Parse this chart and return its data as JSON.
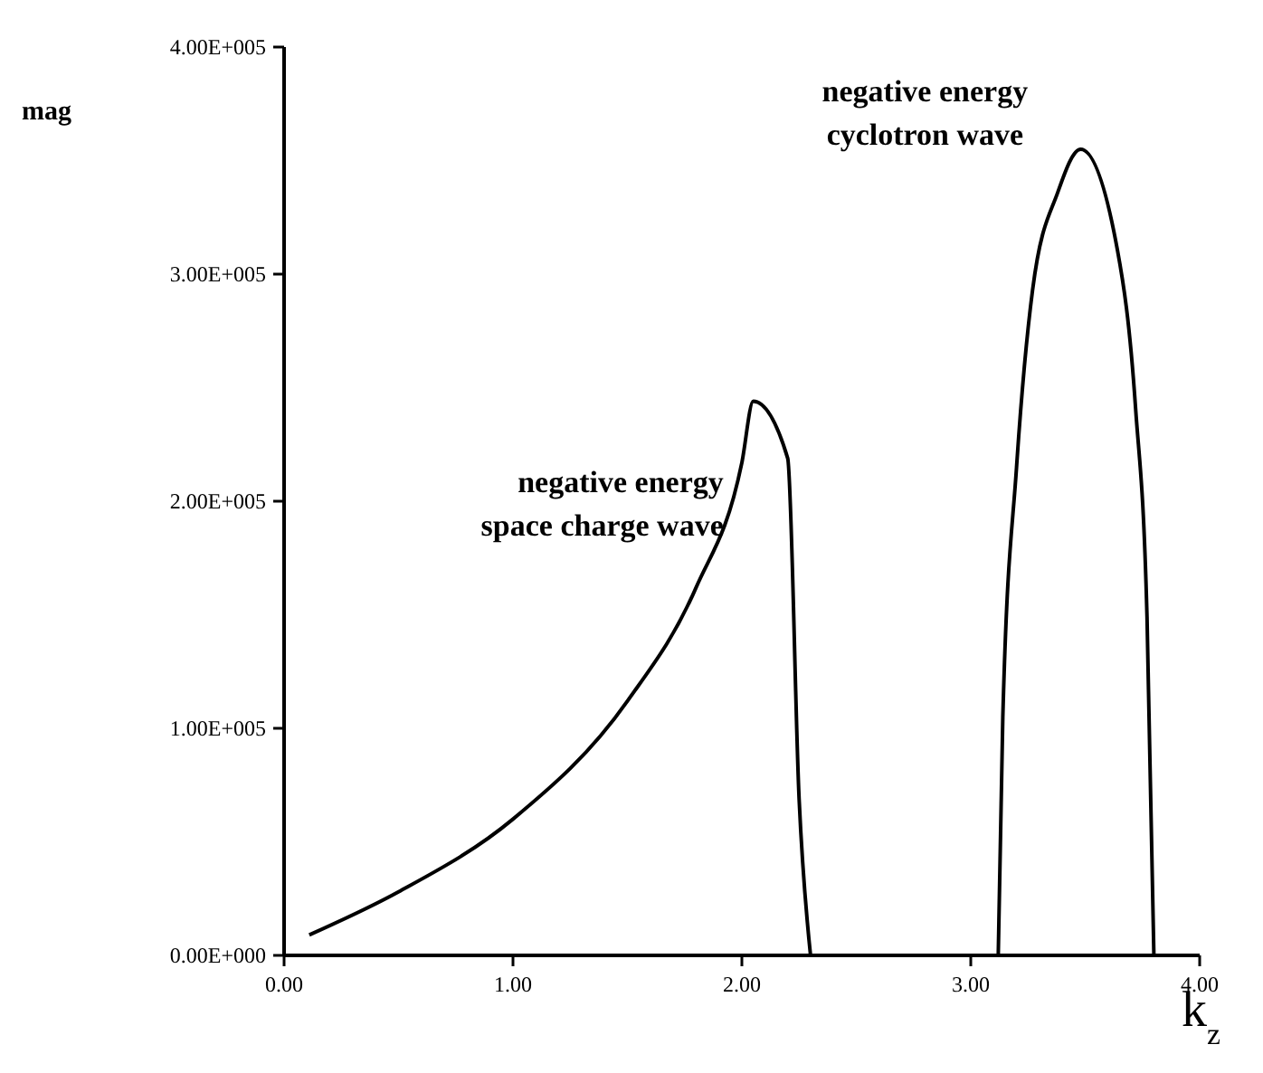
{
  "chart_data": {
    "type": "line",
    "xlabel": "k$_{z}$",
    "ylabel": "mag",
    "xlim": [
      0,
      4
    ],
    "ylim": [
      0,
      400000
    ],
    "xticks": [
      {
        "value": 0,
        "label": "0.00"
      },
      {
        "value": 1,
        "label": "1.00"
      },
      {
        "value": 2,
        "label": "2.00"
      },
      {
        "value": 3,
        "label": "3.00"
      },
      {
        "value": 4,
        "label": "4.00"
      }
    ],
    "yticks": [
      {
        "value": 0,
        "label": "0.00E+000"
      },
      {
        "value": 100000,
        "label": "1.00E+005"
      },
      {
        "value": 200000,
        "label": "2.00E+005"
      },
      {
        "value": 300000,
        "label": "3.00E+005"
      },
      {
        "value": 400000,
        "label": "4.00E+005"
      }
    ],
    "series": [
      {
        "color": "#000000",
        "x": [
          0.11,
          0.5,
          1.0,
          1.5,
          1.8,
          2.0,
          2.05,
          2.2,
          2.25,
          2.3
        ],
        "values": [
          9000,
          28000,
          60000,
          112000,
          162000,
          217000,
          244000,
          219000,
          69000,
          0
        ]
      },
      {
        "color": "#000000",
        "x": [
          3.12,
          3.14,
          3.2,
          3.27,
          3.38,
          3.48,
          3.64,
          3.72,
          3.77,
          3.8
        ],
        "values": [
          0,
          105000,
          215000,
          293000,
          336000,
          355000,
          311000,
          241000,
          149000,
          0
        ]
      }
    ],
    "annotations": [
      "negative energy\nspace charge wave",
      "negative energy\ncyclotron wave"
    ],
    "marker": "none",
    "line_style": "solid"
  }
}
